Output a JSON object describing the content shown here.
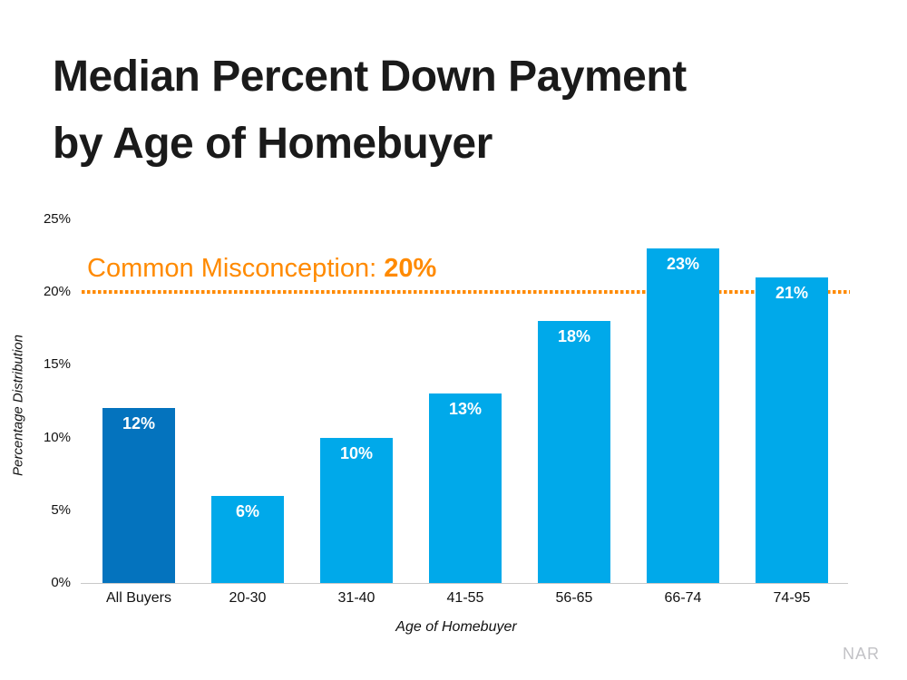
{
  "slide": {
    "title_line1": "Median Percent Down Payment",
    "title_line2": "by Age of Homebuyer",
    "source": "NAR"
  },
  "annotation": {
    "label": "Common Misconception: ",
    "value": "20%",
    "threshold_percent": 20
  },
  "chart_data": {
    "type": "bar",
    "title": "Median Percent Down Payment by Age of Homebuyer",
    "xlabel": "Age of Homebuyer",
    "ylabel": "Percentage Distribution",
    "categories": [
      "All Buyers",
      "20-30",
      "31-40",
      "41-55",
      "56-65",
      "66-74",
      "74-95"
    ],
    "values": [
      12,
      6,
      10,
      13,
      18,
      23,
      21
    ],
    "value_labels": [
      "12%",
      "6%",
      "10%",
      "13%",
      "18%",
      "23%",
      "21%"
    ],
    "ylim": [
      0,
      25
    ],
    "yticks": [
      0,
      5,
      10,
      15,
      20,
      25
    ],
    "ytick_labels": [
      "0%",
      "5%",
      "10%",
      "15%",
      "20%",
      "25%"
    ],
    "grid": false,
    "legend": "none",
    "threshold_line": {
      "value": 20,
      "style": "dotted",
      "color": "#FF8A00"
    },
    "highlight_index": 0,
    "colors": {
      "highlight_bar": "#0473BE",
      "default_bar": "#00A9EA",
      "threshold": "#FF8A00",
      "annotation_text": "#FF8A00",
      "value_label_text": "#FFFFFF",
      "axis_line": "#C9C9C9",
      "title_text": "#1A1A1A",
      "source_text": "#C2C2C6"
    }
  }
}
